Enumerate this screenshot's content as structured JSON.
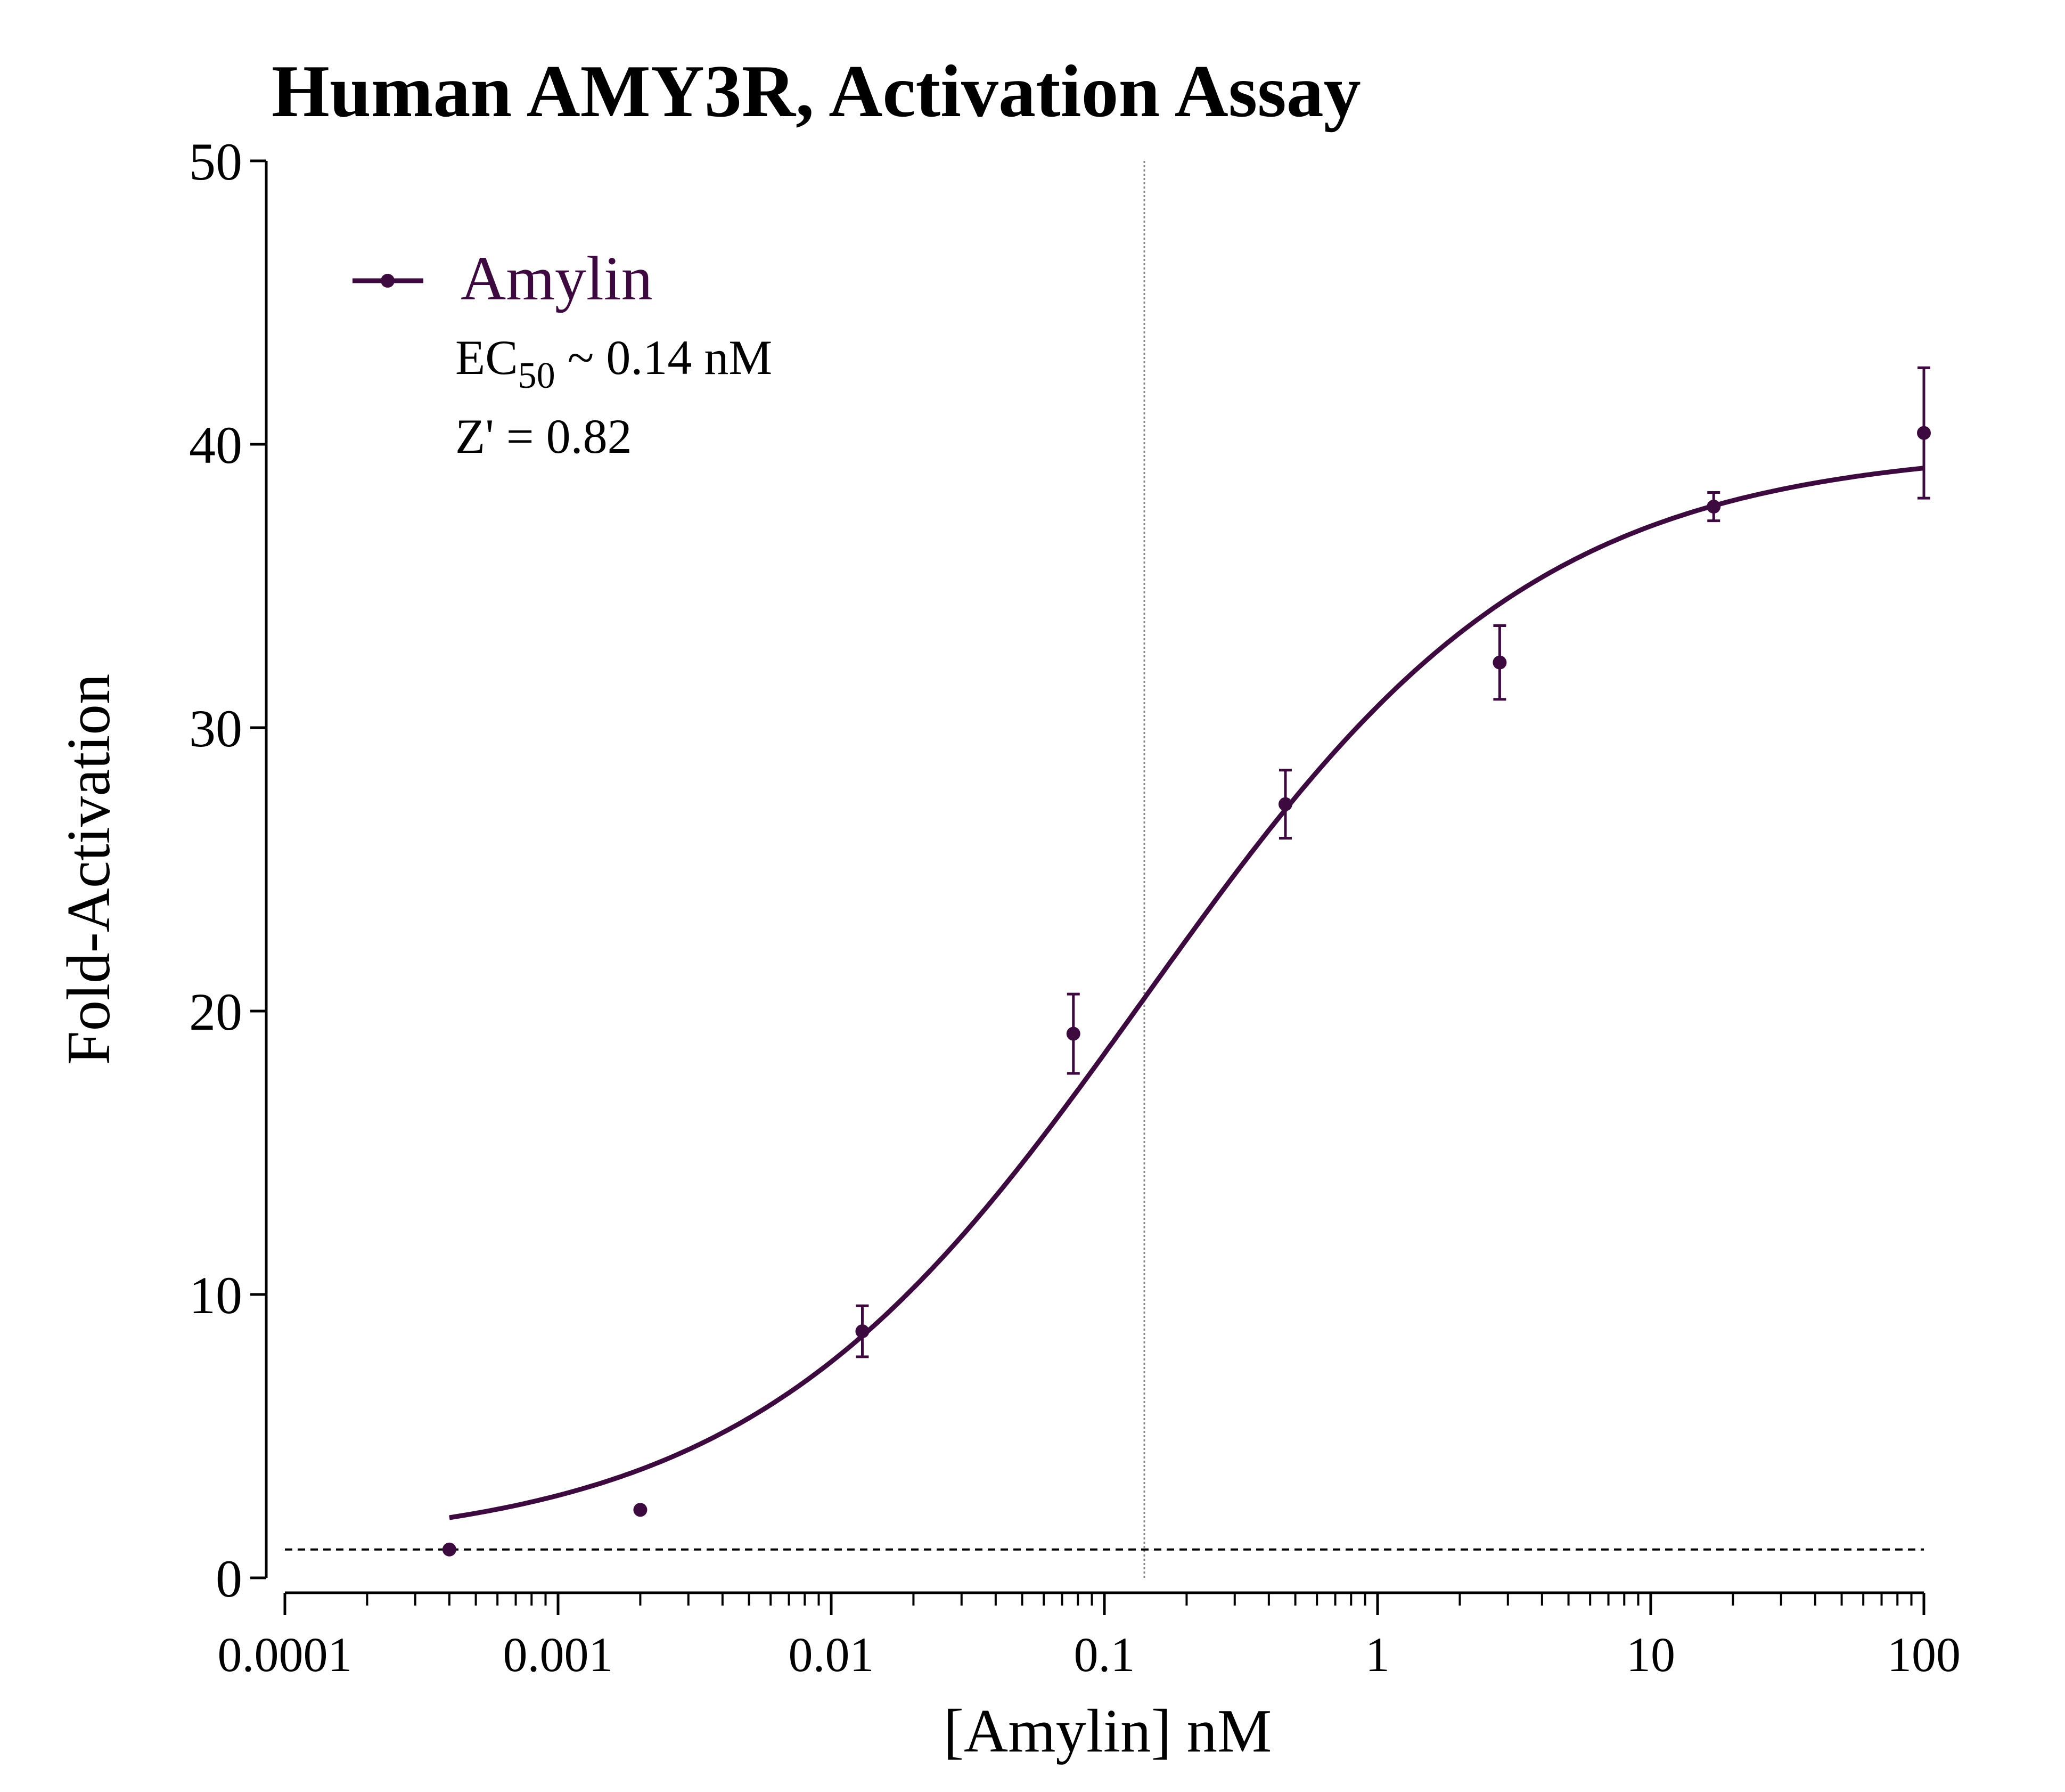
{
  "colors": {
    "series": "#3d0a3f",
    "axis": "#000000",
    "ec50_line": "#888888",
    "baseline": "#000000"
  },
  "chart_data": {
    "type": "scatter",
    "title": "Human AMY3R, Activation Assay",
    "xlabel": "[Amylin] nM",
    "ylabel": "Fold-Activation",
    "x_scale": "log",
    "xlim": [
      0.0001,
      100
    ],
    "ylim": [
      0,
      50
    ],
    "x_ticks": [
      0.0001,
      0.001,
      0.01,
      0.1,
      1,
      10,
      100
    ],
    "x_tick_labels": [
      "0.0001",
      "0.001",
      "0.01",
      "0.1",
      "1",
      "10",
      "100"
    ],
    "y_ticks": [
      0,
      10,
      20,
      30,
      40,
      50
    ],
    "y_tick_labels": [
      "0",
      "10",
      "20",
      "30",
      "40",
      "50"
    ],
    "grid": false,
    "legend_position": "top-left",
    "series": [
      {
        "name": "Amylin",
        "points": [
          {
            "x": 0.0004,
            "y": 1.0,
            "err": 0
          },
          {
            "x": 0.002,
            "y": 2.4,
            "err": 0
          },
          {
            "x": 0.013,
            "y": 8.7,
            "err": 0.9
          },
          {
            "x": 0.077,
            "y": 19.2,
            "err": 1.4
          },
          {
            "x": 0.46,
            "y": 27.3,
            "err": 1.2
          },
          {
            "x": 2.8,
            "y": 32.3,
            "err": 1.3
          },
          {
            "x": 17,
            "y": 37.8,
            "err": 0.5
          },
          {
            "x": 100,
            "y": 40.4,
            "err": 2.3
          }
        ],
        "fit": {
          "model": "4PL",
          "bottom": 1.0,
          "top": 39.9,
          "ec50": 0.14,
          "hill": 0.6,
          "x_range": [
            0.0004,
            100
          ]
        }
      }
    ],
    "annotations": {
      "ec50_prefix": "EC",
      "ec50_sub": "50",
      "ec50_value": " ~ 0.14 nM",
      "zprime": "Z' = 0.82"
    },
    "reference_lines": {
      "ec50_vertical_x": 0.14,
      "baseline_y": 1.0
    }
  }
}
